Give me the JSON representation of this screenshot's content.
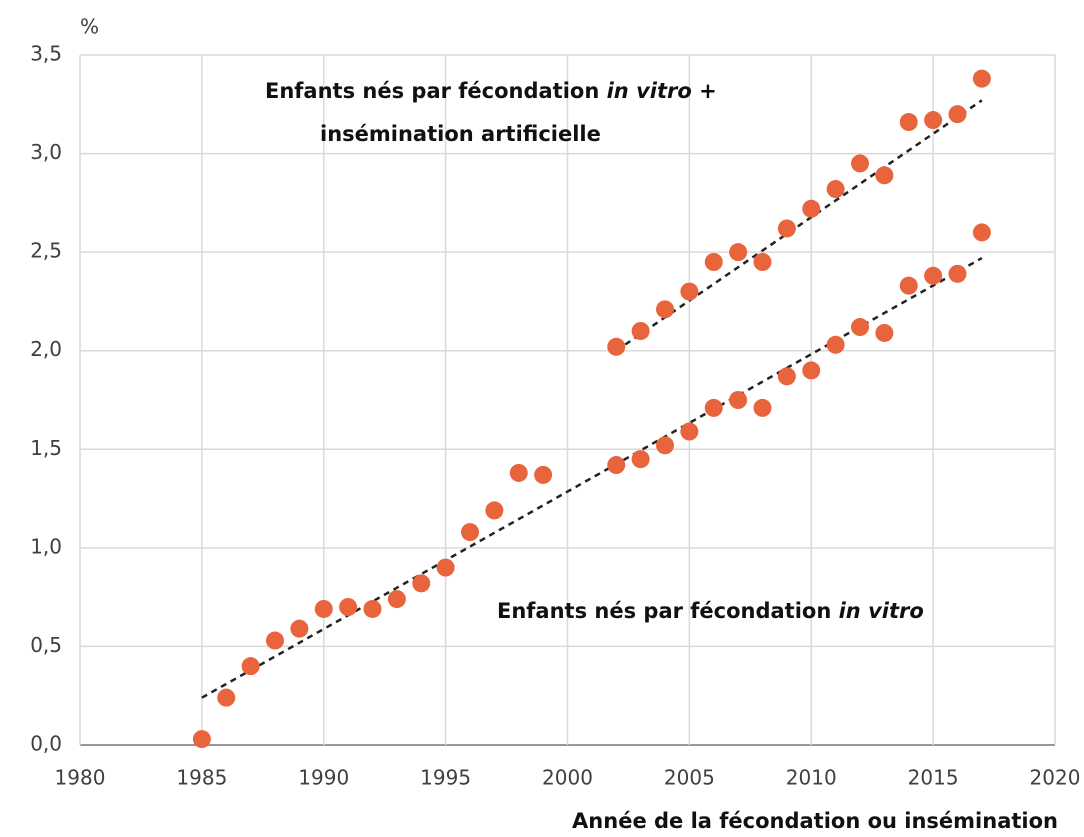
{
  "chart_data": {
    "type": "scatter",
    "y_unit": "%",
    "x_label": "Année de la fécondation ou insémination",
    "xlim": [
      1980,
      2020
    ],
    "xticks": [
      1980,
      1985,
      1990,
      1995,
      2000,
      2005,
      2010,
      2015,
      2020
    ],
    "ylim": [
      0,
      3.5
    ],
    "yticks": [
      {
        "value": 0,
        "label": "0,0"
      },
      {
        "value": 0.5,
        "label": "0,5"
      },
      {
        "value": 1,
        "label": "1,0"
      },
      {
        "value": 1.5,
        "label": "1,5"
      },
      {
        "value": 2,
        "label": "2,0"
      },
      {
        "value": 2.5,
        "label": "2,5"
      },
      {
        "value": 3,
        "label": "3,0"
      },
      {
        "value": 3.5,
        "label": "3,5"
      }
    ],
    "grid": true,
    "series": [
      {
        "color": "#e8643c",
        "x": [
          1985,
          1986,
          1987,
          1988,
          1989,
          1990,
          1991,
          1992,
          1993,
          1994,
          1995,
          1996,
          1997,
          1998,
          1999,
          2002,
          2003,
          2004,
          2005,
          2006,
          2007,
          2008,
          2009,
          2010,
          2011,
          2012,
          2013,
          2014,
          2015,
          2016,
          2017
        ],
        "values": [
          0.03,
          0.24,
          0.4,
          0.53,
          0.59,
          0.69,
          0.7,
          0.69,
          0.74,
          0.82,
          0.9,
          1.08,
          1.19,
          1.38,
          1.37,
          1.42,
          1.45,
          1.52,
          1.59,
          1.71,
          1.75,
          1.71,
          1.87,
          1.9,
          2.03,
          2.12,
          2.09,
          2.33,
          2.38,
          2.39,
          2.6
        ],
        "trend": {
          "x": [
            1985,
            2017
          ],
          "values": [
            0.24,
            2.47
          ]
        }
      },
      {
        "color": "#e8643c",
        "x": [
          2002,
          2003,
          2004,
          2005,
          2006,
          2007,
          2008,
          2009,
          2010,
          2011,
          2012,
          2013,
          2014,
          2015,
          2016,
          2017
        ],
        "values": [
          2.02,
          2.1,
          2.21,
          2.3,
          2.45,
          2.5,
          2.45,
          2.62,
          2.72,
          2.82,
          2.95,
          2.89,
          3.16,
          3.17,
          3.2,
          3.38
        ],
        "trend": {
          "x": [
            2002,
            2017
          ],
          "values": [
            2.0,
            3.27
          ]
        }
      }
    ],
    "annotations": [
      {
        "line1": [
          "Enfants nés par fécondation ",
          "in vitro",
          " +"
        ],
        "line2": "insémination artificielle"
      },
      {
        "line1": [
          "Enfants nés par fécondation ",
          "in vitro"
        ]
      }
    ]
  }
}
